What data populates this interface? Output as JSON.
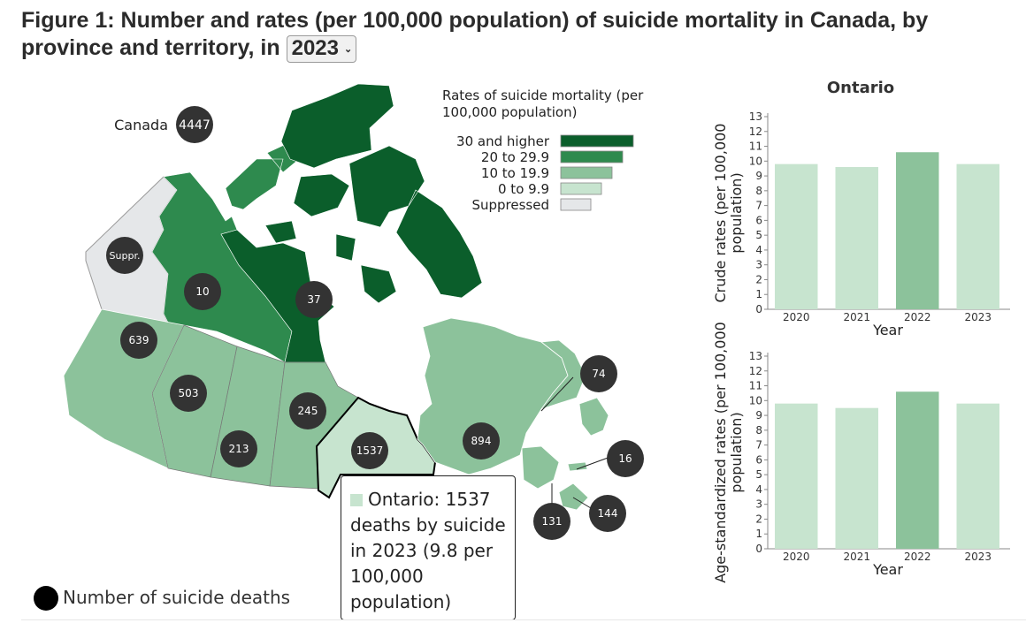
{
  "title": {
    "prefix": "Figure 1: Number and rates (per 100,000 population) of suicide mortality in Canada, by province and territory, in",
    "year": "2023"
  },
  "colors": {
    "30_plus": "#0b5e2b",
    "20_29": "#2e8a4e",
    "10_19": "#8cc29b",
    "0_9": "#c7e4cf",
    "suppressed": "#e5e7e9",
    "circle": "#333333"
  },
  "map": {
    "canada_label": "Canada",
    "canada_total": "4447",
    "legend_title": "Rates of suicide mortality (per 100,000 population)",
    "legend_items": [
      {
        "label": "30 and higher",
        "color": "#0b5e2b"
      },
      {
        "label": "20 to 29.9",
        "color": "#2e8a4e"
      },
      {
        "label": "10 to 19.9",
        "color": "#8cc29b"
      },
      {
        "label": "0 to 9.9",
        "color": "#c7e4cf"
      },
      {
        "label": "Suppressed",
        "color": "#e5e7e9"
      }
    ],
    "regions": [
      {
        "name": "Yukon",
        "deaths": "Suppr."
      },
      {
        "name": "Northwest Territories",
        "deaths": "10"
      },
      {
        "name": "Nunavut",
        "deaths": "37"
      },
      {
        "name": "British Columbia",
        "deaths": "639"
      },
      {
        "name": "Alberta",
        "deaths": "503"
      },
      {
        "name": "Saskatchewan",
        "deaths": "213"
      },
      {
        "name": "Manitoba",
        "deaths": "245"
      },
      {
        "name": "Ontario",
        "deaths": "1537"
      },
      {
        "name": "Quebec",
        "deaths": "894"
      },
      {
        "name": "Newfoundland and Labrador",
        "deaths": "74"
      },
      {
        "name": "Prince Edward Island",
        "deaths": "16"
      },
      {
        "name": "New Brunswick",
        "deaths": "131"
      },
      {
        "name": "Nova Scotia",
        "deaths": "144"
      }
    ],
    "circle_legend": "Number of suicide deaths",
    "tooltip": {
      "region": "Ontario",
      "text": "Ontario: 1537 deaths by suicide in 2023 (9.8 per 100,000 population)"
    }
  },
  "chart_data": [
    {
      "type": "bar",
      "title": "Ontario",
      "categories": [
        "2020",
        "2021",
        "2022",
        "2023"
      ],
      "values": [
        9.8,
        9.6,
        10.6,
        9.8
      ],
      "bar_colors": [
        "#c7e4cf",
        "#c7e4cf",
        "#8cc29b",
        "#c7e4cf"
      ],
      "xlabel": "Year",
      "ylabel": "Crude rates (per 100,000 population)",
      "ylim": [
        0,
        13
      ],
      "yticks": [
        0,
        1,
        2,
        3,
        4,
        5,
        6,
        7,
        8,
        9,
        10,
        11,
        12,
        13
      ],
      "grid": false
    },
    {
      "type": "bar",
      "title": "",
      "categories": [
        "2020",
        "2021",
        "2022",
        "2023"
      ],
      "values": [
        9.8,
        9.5,
        10.6,
        9.8
      ],
      "bar_colors": [
        "#c7e4cf",
        "#c7e4cf",
        "#8cc29b",
        "#c7e4cf"
      ],
      "xlabel": "Year",
      "ylabel": "Age-standardized rates (per 100,000 population)",
      "ylim": [
        0,
        13
      ],
      "yticks": [
        0,
        1,
        2,
        3,
        4,
        5,
        6,
        7,
        8,
        9,
        10,
        11,
        12,
        13
      ],
      "grid": false
    }
  ]
}
